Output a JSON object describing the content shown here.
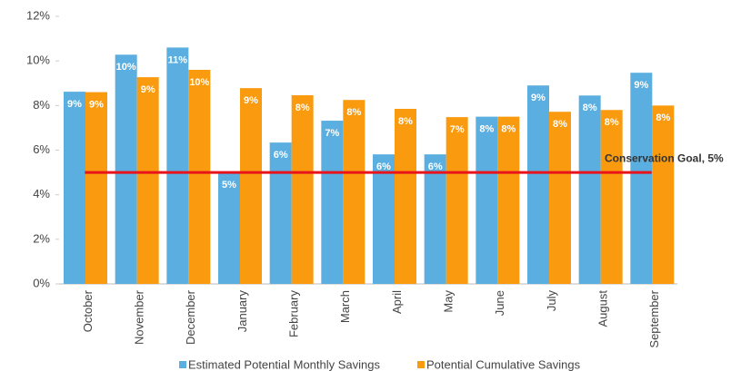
{
  "chart_data": {
    "type": "bar",
    "categories": [
      "October",
      "November",
      "December",
      "January",
      "February",
      "March",
      "April",
      "May",
      "June",
      "July",
      "August",
      "September"
    ],
    "series": [
      {
        "name": "Estimated Potential Monthly Savings",
        "color": "#5aaee0",
        "values": [
          8.62,
          10.28,
          10.6,
          5.0,
          6.34,
          7.32,
          5.81,
          5.81,
          7.5,
          8.9,
          8.45,
          9.47
        ],
        "value_labels": [
          "9%",
          "10%",
          "11%",
          "5%",
          "6%",
          "7%",
          "6%",
          "6%",
          "8%",
          "9%",
          "8%",
          "9%"
        ]
      },
      {
        "name": "Potential Cumulative Savings",
        "color": "#f99a0f",
        "values": [
          8.6,
          9.27,
          9.6,
          8.78,
          8.46,
          8.25,
          7.85,
          7.48,
          7.5,
          7.72,
          7.8,
          8.0
        ],
        "value_labels": [
          "9%",
          "9%",
          "10%",
          "9%",
          "8%",
          "8%",
          "8%",
          "7%",
          "8%",
          "8%",
          "8%",
          "8%"
        ]
      }
    ],
    "ylim": [
      0,
      12
    ],
    "yticks": [
      {
        "value": 0,
        "label": "0%"
      },
      {
        "value": 2,
        "label": "2%"
      },
      {
        "value": 4,
        "label": "4%"
      },
      {
        "value": 6,
        "label": "6%"
      },
      {
        "value": 8,
        "label": "8%"
      },
      {
        "value": 10,
        "label": "10%"
      },
      {
        "value": 12,
        "label": "12%"
      }
    ],
    "goal": {
      "value": 5,
      "label": "Conservation Goal, 5%",
      "color": "#e8131b"
    },
    "legend": "bottom"
  }
}
